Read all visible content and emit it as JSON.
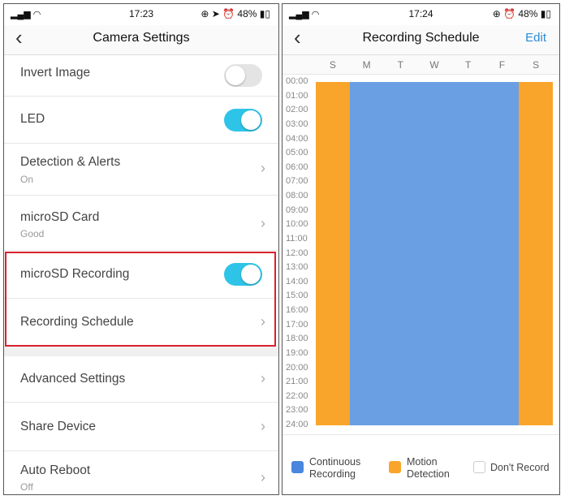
{
  "left": {
    "status": {
      "time": "17:23",
      "battery": "48%"
    },
    "title": "Camera Settings",
    "rows": [
      {
        "label": "Invert Image",
        "toggle": false
      },
      {
        "label": "LED",
        "toggle": true
      },
      {
        "label": "Detection & Alerts",
        "sub": "On"
      },
      {
        "label": "microSD Card",
        "sub": "Good"
      },
      {
        "label": "microSD Recording",
        "toggle": true
      },
      {
        "label": "Recording Schedule"
      },
      {
        "label": "Advanced Settings"
      },
      {
        "label": "Share Device"
      },
      {
        "label": "Auto Reboot",
        "sub": "Off"
      }
    ]
  },
  "right": {
    "status": {
      "time": "17:24",
      "battery": "48%"
    },
    "title": "Recording Schedule",
    "edit": "Edit",
    "days": [
      "S",
      "M",
      "T",
      "W",
      "T",
      "F",
      "S"
    ],
    "times": [
      "00:00",
      "01:00",
      "02:00",
      "03:00",
      "04:00",
      "05:00",
      "06:00",
      "07:00",
      "08:00",
      "09:00",
      "10:00",
      "11:00",
      "12:00",
      "13:00",
      "14:00",
      "15:00",
      "16:00",
      "17:00",
      "18:00",
      "19:00",
      "20:00",
      "21:00",
      "22:00",
      "23:00",
      "24:00"
    ],
    "schedule": [
      "motion",
      "continuous",
      "continuous",
      "continuous",
      "continuous",
      "continuous",
      "motion"
    ],
    "colors": {
      "continuous": "#6a9fe3",
      "motion": "#f9a52b"
    },
    "legend": {
      "continuous": "Continuous Recording",
      "motion": "Motion Detection",
      "none": "Don't Record"
    }
  }
}
